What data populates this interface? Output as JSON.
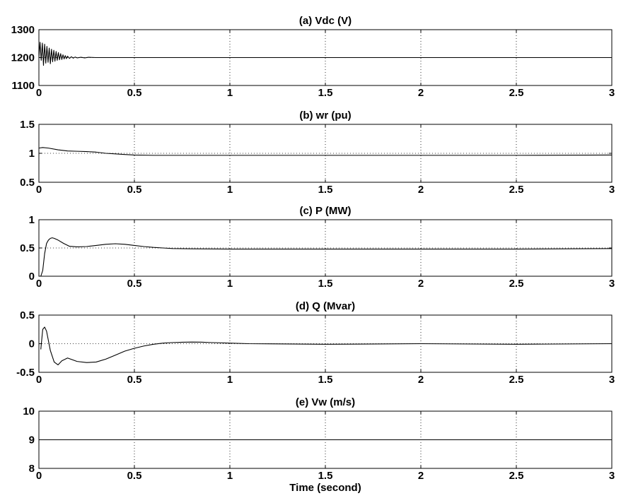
{
  "chart_data": [
    {
      "type": "line",
      "title": "(a) Vdc (V)",
      "xlim": [
        0,
        3
      ],
      "ylim": [
        1100,
        1300
      ],
      "xticks": [
        0,
        0.5,
        1,
        1.5,
        2,
        2.5,
        3
      ],
      "xtick_labels": [
        "0",
        "0.5",
        "1",
        "1.5",
        "2",
        "2.5",
        "3"
      ],
      "yticks": [
        1100,
        1200,
        1300
      ],
      "ytick_labels": [
        "1100",
        "1200",
        "1300"
      ],
      "grid": true,
      "series": [
        {
          "x": [
            0,
            0.006,
            0.012,
            0.018,
            0.024,
            0.03,
            0.036,
            0.042,
            0.048,
            0.054,
            0.06,
            0.066,
            0.072,
            0.078,
            0.084,
            0.09,
            0.096,
            0.102,
            0.108,
            0.114,
            0.12,
            0.126,
            0.132,
            0.138,
            0.144,
            0.15,
            0.16,
            0.17,
            0.18,
            0.19,
            0.2,
            0.22,
            0.24,
            0.26,
            0.3,
            0.5,
            1,
            1.5,
            2,
            2.5,
            3
          ],
          "y": [
            1200,
            1255,
            1190,
            1252,
            1172,
            1248,
            1180,
            1240,
            1183,
            1234,
            1178,
            1230,
            1185,
            1226,
            1187,
            1222,
            1190,
            1218,
            1192,
            1214,
            1193,
            1210,
            1195,
            1207,
            1196,
            1205,
            1197,
            1203,
            1198,
            1202,
            1199,
            1201,
            1199,
            1201,
            1200,
            1200,
            1200,
            1200,
            1200,
            1200,
            1200
          ]
        }
      ]
    },
    {
      "type": "line",
      "title": "(b) wr (pu)",
      "xlim": [
        0,
        3
      ],
      "ylim": [
        0.5,
        1.5
      ],
      "xticks": [
        0,
        0.5,
        1,
        1.5,
        2,
        2.5,
        3
      ],
      "xtick_labels": [
        "0",
        "0.5",
        "1",
        "1.5",
        "2",
        "2.5",
        "3"
      ],
      "yticks": [
        0.5,
        1,
        1.5
      ],
      "ytick_labels": [
        "0.5",
        "1",
        "1.5"
      ],
      "grid": true,
      "series": [
        {
          "x": [
            0,
            0.02,
            0.05,
            0.1,
            0.15,
            0.2,
            0.25,
            0.3,
            0.35,
            0.4,
            0.45,
            0.5,
            0.6,
            0.8,
            1,
            1.5,
            2,
            2.5,
            3
          ],
          "y": [
            1.09,
            1.1,
            1.09,
            1.06,
            1.04,
            1.035,
            1.03,
            1.02,
            1.0,
            0.99,
            0.98,
            0.97,
            0.965,
            0.965,
            0.965,
            0.965,
            0.965,
            0.965,
            0.97
          ]
        }
      ]
    },
    {
      "type": "line",
      "title": "(c) P (MW)",
      "xlim": [
        0,
        3
      ],
      "ylim": [
        0,
        1
      ],
      "xticks": [
        0,
        0.5,
        1,
        1.5,
        2,
        2.5,
        3
      ],
      "xtick_labels": [
        "0",
        "0.5",
        "1",
        "1.5",
        "2",
        "2.5",
        "3"
      ],
      "yticks": [
        0,
        0.5,
        1
      ],
      "ytick_labels": [
        "0",
        "0.5",
        "1"
      ],
      "grid": true,
      "series": [
        {
          "x": [
            0.01,
            0.02,
            0.03,
            0.04,
            0.05,
            0.06,
            0.07,
            0.08,
            0.1,
            0.13,
            0.16,
            0.2,
            0.25,
            0.3,
            0.35,
            0.4,
            0.45,
            0.5,
            0.55,
            0.6,
            0.65,
            0.7,
            0.8,
            1,
            1.5,
            2,
            2.5,
            3
          ],
          "y": [
            0.0,
            0.1,
            0.4,
            0.58,
            0.64,
            0.67,
            0.68,
            0.67,
            0.64,
            0.58,
            0.53,
            0.52,
            0.525,
            0.545,
            0.565,
            0.575,
            0.565,
            0.545,
            0.525,
            0.51,
            0.5,
            0.49,
            0.485,
            0.48,
            0.48,
            0.48,
            0.48,
            0.49
          ]
        }
      ]
    },
    {
      "type": "line",
      "title": "(d) Q (Mvar)",
      "xlim": [
        0,
        3
      ],
      "ylim": [
        -0.5,
        0.5
      ],
      "xticks": [
        0,
        0.5,
        1,
        1.5,
        2,
        2.5,
        3
      ],
      "xtick_labels": [
        "0",
        "0.5",
        "1",
        "1.5",
        "2",
        "2.5",
        "3"
      ],
      "yticks": [
        -0.5,
        0,
        0.5
      ],
      "ytick_labels": [
        "-0.5",
        "0",
        "0.5"
      ],
      "grid": true,
      "series": [
        {
          "x": [
            0.01,
            0.02,
            0.03,
            0.04,
            0.05,
            0.06,
            0.08,
            0.1,
            0.12,
            0.15,
            0.2,
            0.25,
            0.3,
            0.35,
            0.4,
            0.45,
            0.5,
            0.55,
            0.6,
            0.65,
            0.7,
            0.75,
            0.8,
            0.85,
            0.9,
            1,
            1.1,
            1.5,
            2,
            2.5,
            3
          ],
          "y": [
            -0.1,
            0.25,
            0.29,
            0.22,
            0.05,
            -0.12,
            -0.32,
            -0.37,
            -0.3,
            -0.25,
            -0.31,
            -0.33,
            -0.32,
            -0.27,
            -0.2,
            -0.13,
            -0.08,
            -0.04,
            -0.01,
            0.01,
            0.02,
            0.025,
            0.028,
            0.027,
            0.02,
            0.01,
            0.0,
            -0.01,
            0.0,
            -0.01,
            0.0
          ]
        }
      ]
    },
    {
      "type": "line",
      "title": "(e) Vw (m/s)",
      "xlabel": "Time (second)",
      "xlim": [
        0,
        3
      ],
      "ylim": [
        8,
        10
      ],
      "xticks": [
        0,
        0.5,
        1,
        1.5,
        2,
        2.5,
        3
      ],
      "xtick_labels": [
        "0",
        "0.5",
        "1",
        "1.5",
        "2",
        "2.5",
        "3"
      ],
      "yticks": [
        8,
        9,
        10
      ],
      "ytick_labels": [
        "8",
        "9",
        "10"
      ],
      "grid": true,
      "series": [
        {
          "x": [
            0,
            3
          ],
          "y": [
            9,
            9
          ]
        }
      ]
    }
  ]
}
